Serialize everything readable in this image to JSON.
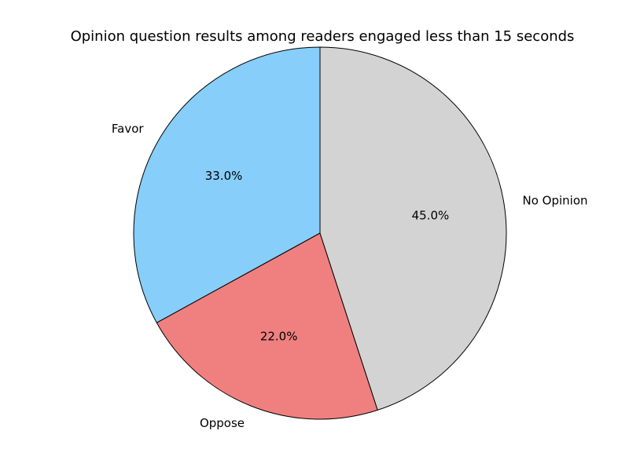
{
  "chart_data": {
    "type": "pie",
    "title": "Opinion question results among readers engaged less than 15 seconds",
    "categories": [
      "Favor",
      "Oppose",
      "No Opinion"
    ],
    "values": [
      33,
      22,
      45
    ],
    "value_labels": [
      "33.0%",
      "22.0%",
      "45.0%"
    ],
    "colors": [
      "#87cefa",
      "#f08080",
      "#d3d3d3"
    ]
  }
}
